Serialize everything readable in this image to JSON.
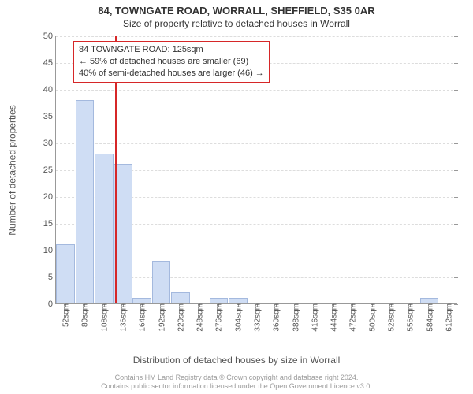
{
  "title": "84, TOWNGATE ROAD, WORRALL, SHEFFIELD, S35 0AR",
  "subtitle": "Size of property relative to detached houses in Worrall",
  "ylabel": "Number of detached properties",
  "xlabel": "Distribution of detached houses by size in Worrall",
  "footer_line1": "Contains HM Land Registry data © Crown copyright and database right 2024.",
  "footer_line2": "Contains public sector information licensed under the Open Government Licence v3.0.",
  "callout": {
    "l1": "84 TOWNGATE ROAD: 125sqm",
    "l2": "← 59% of detached houses are smaller (69)",
    "l3": "40% of semi-detached houses are larger (46) →"
  },
  "chart": {
    "type": "histogram",
    "ylim": [
      0,
      50
    ],
    "ytick_step": 5,
    "background_color": "#ffffff",
    "grid_color": "#dddddd",
    "axis_color": "#999999",
    "bar_fill": "#cfddf4",
    "bar_border": "#a4b9de",
    "refline_color": "#d62728",
    "refline_x": 125,
    "x_start": 52,
    "x_step": 28,
    "x_count": 21,
    "x_unit": "sqm",
    "values": [
      11,
      38,
      28,
      26,
      1,
      8,
      2,
      0,
      1,
      1,
      0,
      0,
      0,
      0,
      0,
      0,
      0,
      0,
      0,
      1,
      0
    ]
  }
}
